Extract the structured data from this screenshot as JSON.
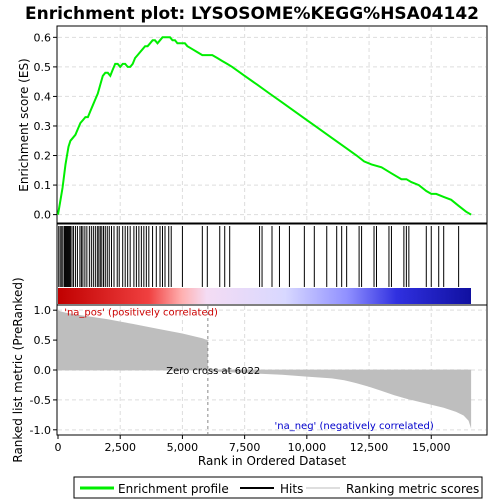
{
  "chart_data": [
    {
      "type": "line",
      "title": "Enrichment plot: LYSOSOME%KEGG%HSA04142",
      "ylabel": "Enrichment score (ES)",
      "xlim": [
        0,
        17200
      ],
      "ylim": [
        -0.025,
        0.635
      ],
      "yticks": [
        0.0,
        0.1,
        0.2,
        0.3,
        0.4,
        0.5,
        0.6
      ],
      "ytick_labels": [
        "0.0",
        "0.1",
        "0.2",
        "0.3",
        "0.4",
        "0.5",
        "0.6"
      ],
      "grid": true,
      "line_color": "#00ee00",
      "series": [
        {
          "name": "Enrichment profile",
          "x": [
            0,
            60,
            120,
            180,
            240,
            300,
            360,
            420,
            500,
            600,
            700,
            800,
            900,
            1000,
            1100,
            1200,
            1300,
            1400,
            1500,
            1600,
            1700,
            1800,
            1900,
            2000,
            2100,
            2200,
            2300,
            2400,
            2500,
            2600,
            2700,
            2800,
            2900,
            3000,
            3100,
            3200,
            3300,
            3400,
            3500,
            3600,
            3700,
            3800,
            3900,
            4000,
            4100,
            4200,
            4300,
            4400,
            4500,
            4600,
            4700,
            4800,
            4900,
            5000,
            5100,
            5200,
            5400,
            5600,
            5800,
            6000,
            6200,
            6400,
            6600,
            6800,
            7000,
            7500,
            8000,
            8500,
            9000,
            9500,
            10000,
            10500,
            11000,
            11500,
            12000,
            12300,
            12600,
            13000,
            13400,
            13800,
            14000,
            14200,
            14500,
            14800,
            15000,
            15200,
            15500,
            15800,
            16100,
            16400,
            16600
          ],
          "y": [
            0.0,
            0.03,
            0.06,
            0.09,
            0.13,
            0.17,
            0.2,
            0.23,
            0.25,
            0.26,
            0.27,
            0.29,
            0.31,
            0.32,
            0.33,
            0.33,
            0.35,
            0.37,
            0.39,
            0.41,
            0.44,
            0.47,
            0.48,
            0.48,
            0.47,
            0.49,
            0.51,
            0.51,
            0.5,
            0.51,
            0.51,
            0.5,
            0.5,
            0.51,
            0.53,
            0.54,
            0.55,
            0.56,
            0.57,
            0.57,
            0.58,
            0.59,
            0.59,
            0.58,
            0.59,
            0.6,
            0.6,
            0.6,
            0.6,
            0.59,
            0.59,
            0.58,
            0.58,
            0.58,
            0.58,
            0.57,
            0.56,
            0.55,
            0.54,
            0.54,
            0.54,
            0.53,
            0.52,
            0.51,
            0.5,
            0.47,
            0.44,
            0.41,
            0.38,
            0.35,
            0.32,
            0.29,
            0.26,
            0.23,
            0.2,
            0.18,
            0.17,
            0.16,
            0.14,
            0.12,
            0.12,
            0.11,
            0.1,
            0.08,
            0.07,
            0.07,
            0.06,
            0.05,
            0.03,
            0.01,
            0.0
          ]
        }
      ]
    },
    {
      "type": "hits",
      "xlim": [
        0,
        17200
      ],
      "hit_positions": [
        30,
        90,
        150,
        200,
        260,
        300,
        340,
        380,
        420,
        460,
        500,
        560,
        620,
        700,
        780,
        880,
        940,
        1000,
        1080,
        1160,
        1260,
        1340,
        1420,
        1500,
        1580,
        1640,
        1700,
        1760,
        1830,
        1900,
        1980,
        2060,
        2150,
        2250,
        2380,
        2460,
        2600,
        2700,
        2800,
        2900,
        3050,
        3150,
        3250,
        3350,
        3450,
        3550,
        3650,
        3800,
        3950,
        4100,
        4200,
        4300,
        4450,
        4550,
        5000,
        5800,
        6000,
        6500,
        6700,
        6900,
        8100,
        8200,
        8600,
        8900,
        9300,
        9900,
        10300,
        10800,
        11200,
        11400,
        11600,
        12100,
        12200,
        12700,
        12800,
        13300,
        13400,
        13900,
        14000,
        14100,
        14800,
        15000,
        15300,
        15500,
        16100
      ]
    },
    {
      "type": "area",
      "ylabel": "Ranked list metric (PreRanked)",
      "xlabel": "Rank in Ordered Dataset",
      "xlim": [
        0,
        17200
      ],
      "ylim": [
        -1.07,
        1.07
      ],
      "xticks": [
        0,
        2500,
        5000,
        7500,
        10000,
        12500,
        15000
      ],
      "xtick_labels": [
        "0",
        "2,500",
        "5,000",
        "7,500",
        "10,000",
        "12,500",
        "15,000"
      ],
      "yticks": [
        -1.0,
        -0.5,
        0.0,
        0.5,
        1.0
      ],
      "ytick_labels": [
        "-1.0",
        "-0.5",
        "0.0",
        "0.5",
        "1.0"
      ],
      "grid": true,
      "x": [
        0,
        100,
        300,
        700,
        1200,
        2000,
        3000,
        4000,
        5000,
        5500,
        5800,
        6000,
        6022,
        6100,
        7000,
        8000,
        9000,
        10000,
        11000,
        11500,
        12000,
        12500,
        13000,
        13500,
        14000,
        14500,
        15000,
        15500,
        16000,
        16300,
        16500,
        16600
      ],
      "y": [
        1.0,
        0.98,
        0.96,
        0.93,
        0.9,
        0.85,
        0.77,
        0.69,
        0.61,
        0.56,
        0.53,
        0.5,
        0.0,
        -0.02,
        -0.04,
        -0.06,
        -0.08,
        -0.11,
        -0.14,
        -0.17,
        -0.22,
        -0.28,
        -0.35,
        -0.42,
        -0.48,
        -0.53,
        -0.58,
        -0.63,
        -0.7,
        -0.76,
        -0.85,
        -0.98
      ],
      "fill_color": "#bebebe",
      "annotations": [
        {
          "text": "'na_pos' (positively correlated)",
          "color": "#cc0000",
          "x": 250,
          "y": 0.98
        },
        {
          "text": "Zero cross at 6022",
          "color": "#000000",
          "x": 4350,
          "y": 0.0
        },
        {
          "text": "'na_neg' (negatively correlated)",
          "color": "#0000cc",
          "x": 8700,
          "y": -0.92
        }
      ],
      "zero_cross": 6022
    }
  ],
  "legend": {
    "items": [
      {
        "label": "Enrichment profile",
        "color": "#00ee00"
      },
      {
        "label": "Hits",
        "color": "#000000"
      },
      {
        "label": "Ranking metric scores",
        "color": "#bebebe"
      }
    ]
  }
}
